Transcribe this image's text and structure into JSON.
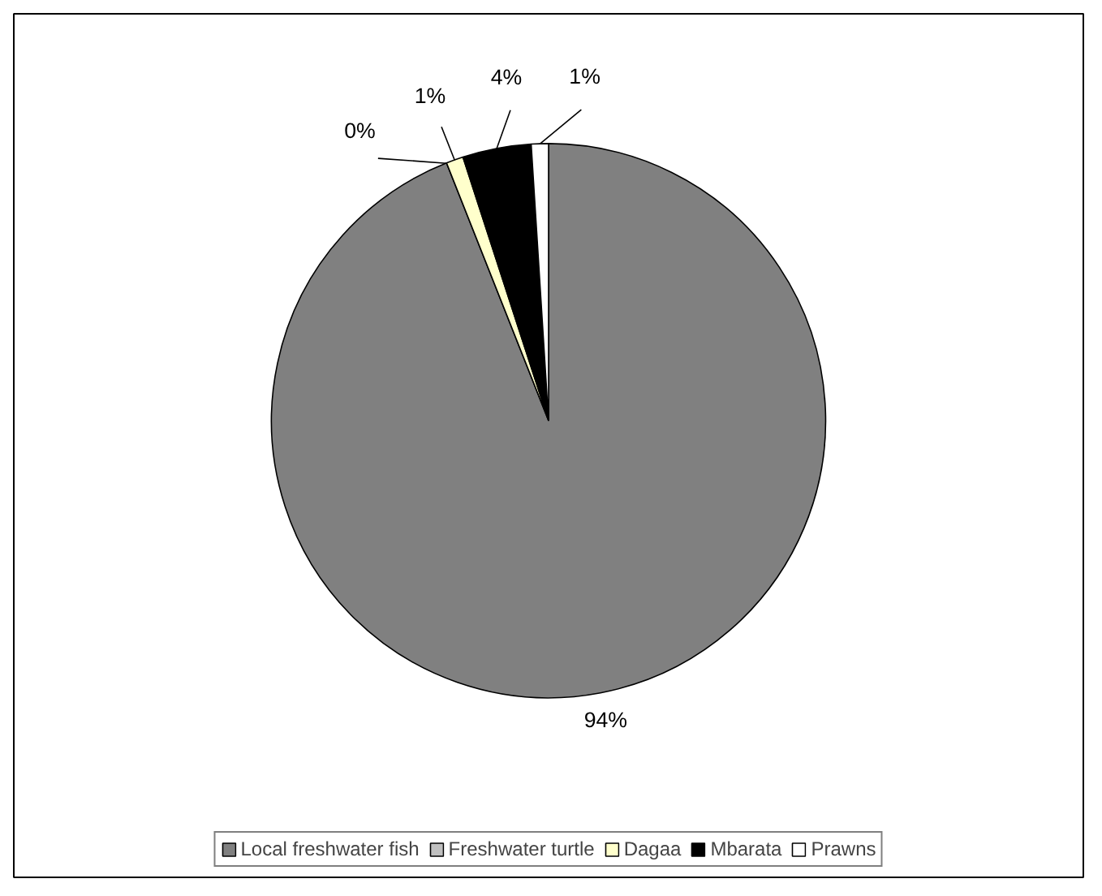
{
  "chart_data": {
    "type": "pie",
    "categories": [
      "Local freshwater fish",
      "Freshwater turtle",
      "Dagaa",
      "Mbarata",
      "Prawns"
    ],
    "values": [
      94,
      0,
      1,
      4,
      1
    ],
    "value_labels": [
      "94%",
      "0%",
      "1%",
      "4%",
      "1%"
    ],
    "colors": [
      "#808080",
      "#c0c0c0",
      "#ffffcc",
      "#000000",
      "#ffffff"
    ],
    "legend": "bottom"
  }
}
